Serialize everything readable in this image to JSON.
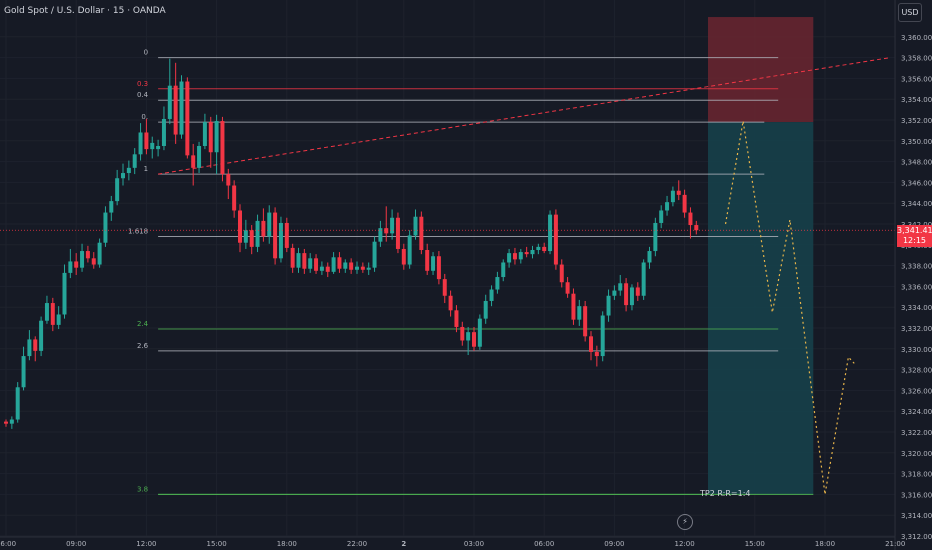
{
  "header": {
    "symbol_title": "Gold Spot / U.S. Dollar · 15 · OANDA",
    "currency": "USD"
  },
  "price_tag": {
    "price": "3,341.41",
    "countdown": "12:15"
  },
  "colors": {
    "background": "#161A25",
    "candle_up": "#26A69A",
    "candle_down": "#F23645",
    "stop_zone": "#6B2630",
    "target_zone": "#16404A",
    "fib_white": "#B2B5BE",
    "fib_red": "#F23645",
    "fib_green": "#4CAF50",
    "projection": "#E8B54A"
  },
  "chart_data": {
    "type": "candlestick",
    "ylim": [
      3312,
      3362
    ],
    "y_ticks": [
      "3,360.000",
      "3,358.000",
      "3,356.000",
      "3,354.000",
      "3,352.000",
      "3,350.000",
      "3,348.000",
      "3,346.000",
      "3,344.000",
      "3,342.000",
      "3,340.000",
      "3,338.000",
      "3,336.000",
      "3,334.000",
      "3,332.000",
      "3,330.000",
      "3,328.000",
      "3,326.000",
      "3,324.000",
      "3,322.000",
      "3,320.000",
      "3,318.000",
      "3,316.000",
      "3,314.000",
      "3,312.000"
    ],
    "x_ticks": [
      "06:00",
      "09:00",
      "12:00",
      "15:00",
      "18:00",
      "22:00",
      "2",
      "03:00",
      "06:00",
      "09:00",
      "12:00",
      "15:00",
      "18:00",
      "21:00"
    ],
    "x_tick_bars": [
      0,
      12,
      24,
      36,
      48,
      60,
      68,
      80,
      92,
      104,
      116,
      128,
      140,
      152
    ],
    "last_bar_index": 119,
    "candles": [
      [
        3323.0,
        3323.2,
        3322.5,
        3322.8
      ],
      [
        3322.8,
        3323.5,
        3322.3,
        3323.2
      ],
      [
        3323.2,
        3326.8,
        3322.9,
        3326.3
      ],
      [
        3326.3,
        3330.2,
        3326.0,
        3329.3
      ],
      [
        3329.3,
        3331.8,
        3328.9,
        3330.9
      ],
      [
        3330.9,
        3331.2,
        3328.8,
        3329.8
      ],
      [
        3329.8,
        3333.1,
        3329.3,
        3332.7
      ],
      [
        3332.7,
        3335.1,
        3332.4,
        3334.4
      ],
      [
        3334.4,
        3334.9,
        3331.7,
        3332.3
      ],
      [
        3332.3,
        3334.1,
        3331.9,
        3333.3
      ],
      [
        3333.3,
        3338.1,
        3332.9,
        3337.3
      ],
      [
        3337.3,
        3339.6,
        3336.8,
        3338.4
      ],
      [
        3338.4,
        3339.2,
        3337.1,
        3337.8
      ],
      [
        3337.8,
        3340.1,
        3337.4,
        3339.4
      ],
      [
        3339.4,
        3339.9,
        3338.3,
        3338.7
      ],
      [
        3338.7,
        3339.3,
        3337.7,
        3338.1
      ],
      [
        3338.1,
        3340.6,
        3337.8,
        3340.2
      ],
      [
        3340.2,
        3343.7,
        3339.8,
        3343.1
      ],
      [
        3343.1,
        3344.7,
        3342.3,
        3344.2
      ],
      [
        3344.2,
        3347.2,
        3343.8,
        3346.4
      ],
      [
        3346.4,
        3347.8,
        3345.7,
        3346.9
      ],
      [
        3346.9,
        3348.1,
        3346.2,
        3347.4
      ],
      [
        3347.4,
        3349.3,
        3346.8,
        3348.7
      ],
      [
        3348.7,
        3351.7,
        3348.1,
        3350.8
      ],
      [
        3350.8,
        3352.1,
        3348.7,
        3349.2
      ],
      [
        3349.2,
        3350.4,
        3348.3,
        3349.8
      ],
      [
        3349.2,
        3350.1,
        3348.5,
        3349.5
      ],
      [
        3349.5,
        3353.3,
        3349.1,
        3352.1
      ],
      [
        3352.1,
        3357.9,
        3351.6,
        3355.3
      ],
      [
        3355.3,
        3357.5,
        3349.7,
        3350.6
      ],
      [
        3350.6,
        3356.3,
        3350.2,
        3355.7
      ],
      [
        3355.7,
        3356.1,
        3348.3,
        3348.6
      ],
      [
        3348.6,
        3349.7,
        3345.7,
        3347.4
      ],
      [
        3347.4,
        3349.9,
        3346.9,
        3349.5
      ],
      [
        3349.5,
        3352.6,
        3349.2,
        3351.8
      ],
      [
        3351.8,
        3352.3,
        3347.4,
        3348.9
      ],
      [
        3348.9,
        3352.5,
        3346.8,
        3351.9
      ],
      [
        3351.9,
        3352.3,
        3346.1,
        3346.8
      ],
      [
        3346.8,
        3347.3,
        3344.4,
        3345.7
      ],
      [
        3345.7,
        3346.2,
        3342.6,
        3343.3
      ],
      [
        3343.3,
        3343.9,
        3339.3,
        3340.2
      ],
      [
        3340.2,
        3342.4,
        3339.6,
        3341.4
      ],
      [
        3341.4,
        3341.9,
        3339.1,
        3339.8
      ],
      [
        3339.8,
        3342.9,
        3339.3,
        3342.3
      ],
      [
        3342.3,
        3343.5,
        3340.3,
        3340.8
      ],
      [
        3340.8,
        3343.8,
        3340.1,
        3343.1
      ],
      [
        3343.1,
        3343.6,
        3338.1,
        3338.7
      ],
      [
        3338.7,
        3342.7,
        3338.3,
        3342.1
      ],
      [
        3342.1,
        3342.6,
        3339.3,
        3339.7
      ],
      [
        3339.7,
        3340.1,
        3337.3,
        3337.8
      ],
      [
        3337.8,
        3339.7,
        3337.3,
        3339.2
      ],
      [
        3339.2,
        3339.6,
        3337.2,
        3337.7
      ],
      [
        3337.7,
        3339.2,
        3337.3,
        3338.7
      ],
      [
        3338.7,
        3339.1,
        3337.2,
        3337.5
      ],
      [
        3337.5,
        3338.4,
        3337.1,
        3337.9
      ],
      [
        3337.9,
        3338.3,
        3336.9,
        3337.4
      ],
      [
        3337.4,
        3339.3,
        3337.2,
        3338.8
      ],
      [
        3338.8,
        3339.3,
        3337.3,
        3337.7
      ],
      [
        3337.7,
        3338.6,
        3337.3,
        3338.3
      ],
      [
        3338.3,
        3338.7,
        3337.2,
        3337.6
      ],
      [
        3337.6,
        3338.4,
        3337.2,
        3337.9
      ],
      [
        3337.9,
        3338.3,
        3337.3,
        3337.6
      ],
      [
        3337.6,
        3338.3,
        3337.1,
        3337.8
      ],
      [
        3337.8,
        3340.8,
        3337.4,
        3340.3
      ],
      [
        3340.3,
        3342.3,
        3339.8,
        3341.6
      ],
      [
        3341.6,
        3343.7,
        3340.3,
        3341.1
      ],
      [
        3341.1,
        3343.4,
        3340.5,
        3342.6
      ],
      [
        3342.6,
        3343.1,
        3339.2,
        3339.6
      ],
      [
        3339.6,
        3340.1,
        3337.6,
        3338.1
      ],
      [
        3338.1,
        3341.4,
        3337.7,
        3340.9
      ],
      [
        3340.9,
        3343.4,
        3340.5,
        3342.7
      ],
      [
        3342.7,
        3343.2,
        3339.1,
        3339.5
      ],
      [
        3339.5,
        3340.1,
        3337.1,
        3337.5
      ],
      [
        3337.5,
        3339.3,
        3337.1,
        3338.9
      ],
      [
        3338.9,
        3339.4,
        3336.2,
        3336.7
      ],
      [
        3336.7,
        3337.2,
        3334.4,
        3335.1
      ],
      [
        3335.1,
        3335.6,
        3333.1,
        3333.7
      ],
      [
        3333.7,
        3334.2,
        3331.6,
        3332.1
      ],
      [
        3332.1,
        3332.6,
        3330.3,
        3330.8
      ],
      [
        3330.8,
        3332.1,
        3329.4,
        3331.6
      ],
      [
        3331.6,
        3332.1,
        3329.8,
        3330.2
      ],
      [
        3330.2,
        3333.3,
        3329.9,
        3332.9
      ],
      [
        3332.9,
        3335.2,
        3332.4,
        3334.6
      ],
      [
        3334.6,
        3336.1,
        3334.1,
        3335.7
      ],
      [
        3335.7,
        3337.4,
        3335.3,
        3336.9
      ],
      [
        3336.9,
        3338.6,
        3336.5,
        3338.3
      ],
      [
        3338.3,
        3339.6,
        3337.8,
        3339.2
      ],
      [
        3339.2,
        3339.7,
        3338.1,
        3338.6
      ],
      [
        3338.6,
        3339.6,
        3338.2,
        3339.3
      ],
      [
        3339.3,
        3339.8,
        3338.8,
        3339.1
      ],
      [
        3339.1,
        3339.9,
        3338.7,
        3339.5
      ],
      [
        3339.5,
        3340.1,
        3339.1,
        3339.8
      ],
      [
        3339.8,
        3340.2,
        3339.2,
        3339.4
      ],
      [
        3339.4,
        3343.3,
        3339.1,
        3342.9
      ],
      [
        3342.9,
        3343.4,
        3337.6,
        3338.1
      ],
      [
        3338.1,
        3338.6,
        3335.9,
        3336.4
      ],
      [
        3336.4,
        3336.9,
        3334.9,
        3335.3
      ],
      [
        3335.3,
        3335.8,
        3332.3,
        3332.8
      ],
      [
        3332.8,
        3334.7,
        3332.2,
        3334.1
      ],
      [
        3334.1,
        3334.6,
        3330.7,
        3331.2
      ],
      [
        3331.2,
        3331.7,
        3328.9,
        3329.7
      ],
      [
        3329.7,
        3330.3,
        3328.3,
        3329.3
      ],
      [
        3329.3,
        3333.6,
        3328.8,
        3333.2
      ],
      [
        3333.2,
        3335.7,
        3332.6,
        3335.1
      ],
      [
        3335.1,
        3336.1,
        3334.7,
        3335.6
      ],
      [
        3335.6,
        3337.1,
        3335.1,
        3336.3
      ],
      [
        3336.3,
        3336.8,
        3333.6,
        3334.2
      ],
      [
        3334.2,
        3336.2,
        3333.7,
        3335.9
      ],
      [
        3335.9,
        3336.4,
        3334.6,
        3335.1
      ],
      [
        3335.1,
        3338.6,
        3334.7,
        3338.3
      ],
      [
        3338.3,
        3339.8,
        3337.7,
        3339.4
      ],
      [
        3339.4,
        3342.6,
        3338.9,
        3342.1
      ],
      [
        3342.1,
        3343.8,
        3341.6,
        3343.3
      ],
      [
        3343.3,
        3344.7,
        3342.8,
        3344.1
      ],
      [
        3344.1,
        3345.6,
        3343.7,
        3345.2
      ],
      [
        3345.2,
        3346.2,
        3344.3,
        3344.8
      ],
      [
        3344.8,
        3345.3,
        3342.6,
        3343.1
      ],
      [
        3343.1,
        3343.6,
        3340.6,
        3341.9
      ],
      [
        3341.9,
        3342.3,
        3341.0,
        3341.4
      ]
    ],
    "fib_levels": [
      {
        "label": "0",
        "price": 3358.0,
        "tone": "white"
      },
      {
        "label": "0.3",
        "price": 3355.0,
        "tone": "red"
      },
      {
        "label": "0.4",
        "price": 3353.9,
        "tone": "white"
      },
      {
        "label": "0.",
        "price": 3351.8,
        "tone": "white"
      },
      {
        "label": "1",
        "price": 3346.8,
        "tone": "white"
      },
      {
        "label": "1.618",
        "price": 3340.8,
        "tone": "white"
      },
      {
        "label": "2.4",
        "price": 3331.9,
        "tone": "green"
      },
      {
        "label": "2.6",
        "price": 3329.8,
        "tone": "white"
      },
      {
        "label": "3.8",
        "price": 3316.0,
        "tone": "green"
      }
    ],
    "trendline": {
      "from": [
        26,
        3346.8
      ],
      "to": [
        152,
        3358.0
      ]
    },
    "position": {
      "start_bar": 120,
      "end_bar": 138,
      "stop": 3361.9,
      "entry": 3351.8,
      "target": 3316.0,
      "label": "TP2 R:R=1:4"
    },
    "projection_path": [
      [
        123,
        3342.0
      ],
      [
        126,
        3351.9
      ],
      [
        131,
        3333.5
      ],
      [
        134,
        3342.4
      ],
      [
        140,
        3316.0
      ],
      [
        144,
        3329.2
      ],
      [
        145,
        3328.6
      ]
    ]
  }
}
